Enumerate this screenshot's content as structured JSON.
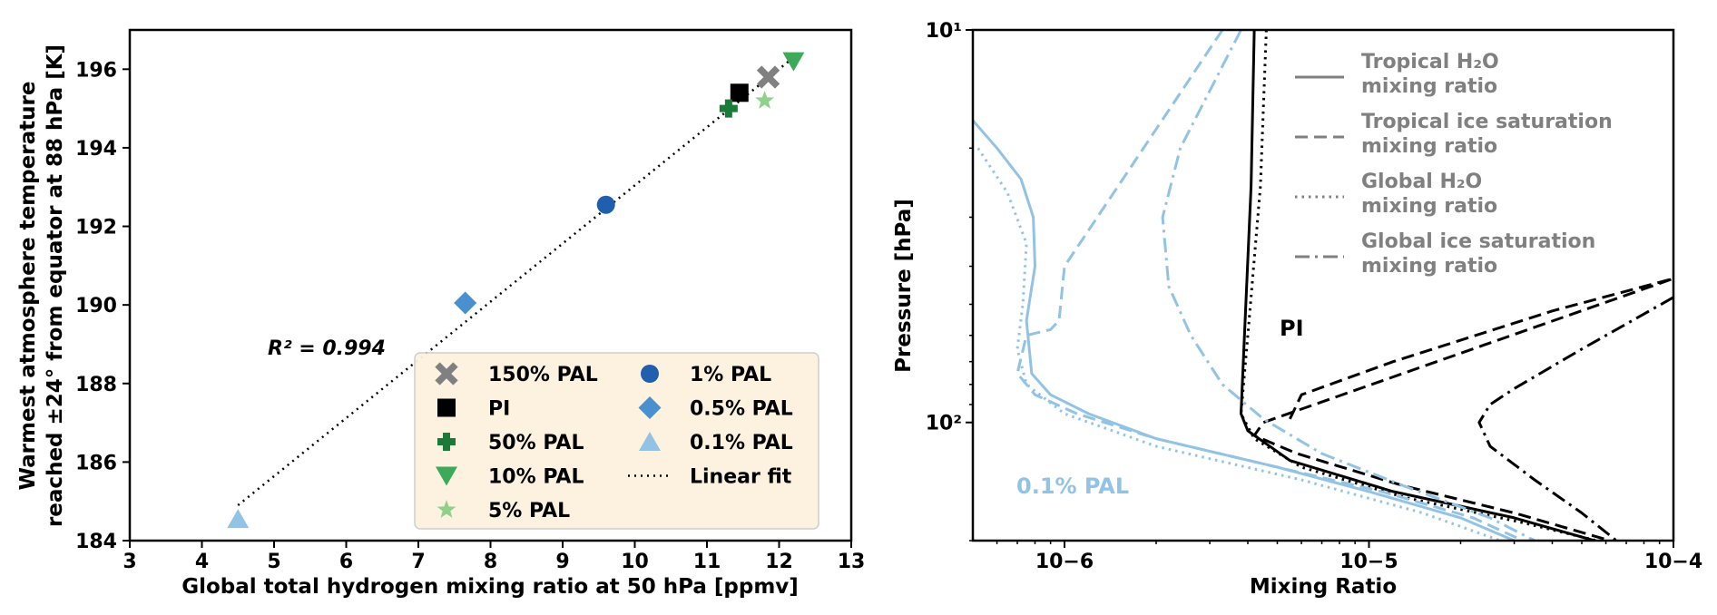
{
  "chart_data": [
    {
      "type": "scatter",
      "xlabel": "Global total hydrogen mixing ratio at 50 hPa [ppmv]",
      "ylabel_line1": "Warmest atmosphere temperature",
      "ylabel_line2": "reached ±24° from equator at 88 hPa [K]",
      "xlim": [
        3,
        13
      ],
      "ylim": [
        184,
        197
      ],
      "xticks": [
        3,
        4,
        5,
        6,
        7,
        8,
        9,
        10,
        11,
        12,
        13
      ],
      "yticks": [
        184,
        186,
        188,
        190,
        192,
        194,
        196
      ],
      "annotation": "R² = 0.994",
      "points": [
        {
          "label": "150% PAL",
          "x": 11.85,
          "y": 195.8,
          "marker": "x",
          "color": "#808080"
        },
        {
          "label": "PI",
          "x": 11.45,
          "y": 195.4,
          "marker": "square",
          "color": "#000000"
        },
        {
          "label": "50% PAL",
          "x": 11.3,
          "y": 195.0,
          "marker": "plus",
          "color": "#1b7a37"
        },
        {
          "label": "10% PAL",
          "x": 12.2,
          "y": 196.2,
          "marker": "triangle-down",
          "color": "#3daa5a"
        },
        {
          "label": "5% PAL",
          "x": 11.8,
          "y": 195.2,
          "marker": "star",
          "color": "#8fd08a"
        },
        {
          "label": "1% PAL",
          "x": 9.6,
          "y": 192.55,
          "marker": "circle",
          "color": "#1f5fad"
        },
        {
          "label": "0.5% PAL",
          "x": 7.65,
          "y": 190.05,
          "marker": "diamond",
          "color": "#4a90cf"
        },
        {
          "label": "0.1% PAL",
          "x": 4.5,
          "y": 184.55,
          "marker": "triangle-up",
          "color": "#92c3e4"
        }
      ],
      "fit_label": "Linear fit",
      "fit_line": {
        "x": [
          4.5,
          12.2
        ],
        "y": [
          184.9,
          196.3
        ]
      },
      "legend": [
        "150% PAL",
        "PI",
        "50% PAL",
        "10% PAL",
        "5% PAL",
        "1% PAL",
        "0.5% PAL",
        "0.1% PAL",
        "Linear fit"
      ]
    },
    {
      "type": "line",
      "xlabel": "Mixing Ratio",
      "ylabel": "Pressure [hPa]",
      "xscale": "log",
      "yscale": "log",
      "xlim": [
        5e-07,
        0.0001
      ],
      "ylim": [
        10,
        200
      ],
      "xtick_labels": [
        "10−6",
        "10−5",
        "10−4"
      ],
      "ytick_labels": [
        "10¹",
        "10²"
      ],
      "annotations": [
        "PI",
        "0.1% PAL"
      ],
      "legend": [
        {
          "line1": "Tropical H₂O",
          "line2": "mixing ratio",
          "style": "solid"
        },
        {
          "line1": "Tropical ice saturation",
          "line2": "mixing ratio",
          "style": "dashed"
        },
        {
          "line1": "Global H₂O",
          "line2": "mixing ratio",
          "style": "dotted"
        },
        {
          "line1": "Global ice saturation",
          "line2": "mixing ratio",
          "style": "dashdot"
        }
      ],
      "colors": {
        "PI": "#000000",
        "0.1% PAL": "#92c3e4",
        "legend_text": "#808080"
      },
      "series": [
        {
          "experiment": "PI",
          "style": "solid",
          "points": [
            [
              4.2e-06,
              10
            ],
            [
              4.1e-06,
              25
            ],
            [
              3.9e-06,
              60
            ],
            [
              3.8e-06,
              95
            ],
            [
              4e-06,
              105
            ],
            [
              5.5e-06,
              125
            ],
            [
              1.2e-05,
              150
            ],
            [
              3e-05,
              175
            ],
            [
              5.5e-05,
              200
            ]
          ]
        },
        {
          "experiment": "PI",
          "style": "dotted",
          "points": [
            [
              4.6e-06,
              10
            ],
            [
              4.4e-06,
              25
            ],
            [
              4e-06,
              60
            ],
            [
              3.8e-06,
              95
            ],
            [
              4.2e-06,
              110
            ],
            [
              6e-06,
              130
            ],
            [
              1.3e-05,
              155
            ],
            [
              3.2e-05,
              180
            ],
            [
              5.6e-05,
              200
            ]
          ]
        },
        {
          "experiment": "PI",
          "style": "dashed",
          "points": [
            [
              5.5e-06,
              98
            ],
            [
              6e-06,
              85
            ],
            [
              1.2e-05,
              70
            ],
            [
              4e-05,
              52
            ],
            [
              0.0001,
              43
            ],
            [
              0.0001,
              43
            ],
            [
              4.5e-06,
              100
            ],
            [
              4.2e-06,
              108
            ],
            [
              5.8e-06,
              120
            ],
            [
              1.3e-05,
              145
            ],
            [
              3e-05,
              170
            ],
            [
              6.2e-05,
              200
            ]
          ]
        },
        {
          "experiment": "PI",
          "style": "dashdot",
          "points": [
            [
              0.0001,
              48
            ],
            [
              5e-05,
              65
            ],
            [
              3e-05,
              82
            ],
            [
              2.5e-05,
              90
            ],
            [
              2.3e-05,
              100
            ],
            [
              2.5e-05,
              115
            ],
            [
              3.5e-05,
              140
            ],
            [
              5e-05,
              170
            ],
            [
              6.5e-05,
              200
            ]
          ]
        },
        {
          "experiment": "0.1% PAL",
          "style": "solid",
          "points": [
            [
              5e-07,
              17
            ],
            [
              6e-07,
              20
            ],
            [
              7.2e-07,
              24
            ],
            [
              7.9e-07,
              30
            ],
            [
              8e-07,
              40
            ],
            [
              7.5e-07,
              55
            ],
            [
              7.8e-07,
              75
            ],
            [
              9e-07,
              85
            ],
            [
              1.2e-06,
              95
            ],
            [
              2e-06,
              110
            ],
            [
              5e-06,
              130
            ],
            [
              1e-05,
              150
            ],
            [
              2e-05,
              175
            ],
            [
              3e-05,
              200
            ]
          ]
        },
        {
          "experiment": "0.1% PAL",
          "style": "dotted",
          "points": [
            [
              5.2e-07,
              20
            ],
            [
              6.5e-07,
              26
            ],
            [
              7.5e-07,
              35
            ],
            [
              7.3e-07,
              50
            ],
            [
              7e-07,
              65
            ],
            [
              7.5e-07,
              80
            ],
            [
              1e-06,
              95
            ],
            [
              2e-06,
              115
            ],
            [
              6e-06,
              140
            ],
            [
              1.5e-05,
              170
            ],
            [
              2.7e-05,
              200
            ]
          ]
        },
        {
          "experiment": "0.1% PAL",
          "style": "dashed",
          "points": [
            [
              3.3e-06,
              10
            ],
            [
              1.5e-06,
              25
            ],
            [
              1e-06,
              40
            ],
            [
              9.6e-07,
              55
            ],
            [
              9e-07,
              58
            ],
            [
              7.5e-07,
              60
            ],
            [
              7e-07,
              75
            ],
            [
              8e-07,
              85
            ],
            [
              1.1e-06,
              95
            ],
            [
              2e-06,
              110
            ],
            [
              5e-06,
              130
            ],
            [
              1.1e-05,
              150
            ],
            [
              2.2e-05,
              175
            ],
            [
              3.2e-05,
              200
            ]
          ]
        },
        {
          "experiment": "0.1% PAL",
          "style": "dashdot",
          "points": [
            [
              3.8e-06,
              10
            ],
            [
              2.4e-06,
              20
            ],
            [
              2.1e-06,
              30
            ],
            [
              2.2e-06,
              45
            ],
            [
              2.6e-06,
              60
            ],
            [
              3.3e-06,
              80
            ],
            [
              4.5e-06,
              98
            ],
            [
              7e-06,
              120
            ],
            [
              1.3e-05,
              145
            ],
            [
              2.5e-05,
              175
            ],
            [
              3.5e-05,
              200
            ]
          ]
        }
      ]
    }
  ]
}
